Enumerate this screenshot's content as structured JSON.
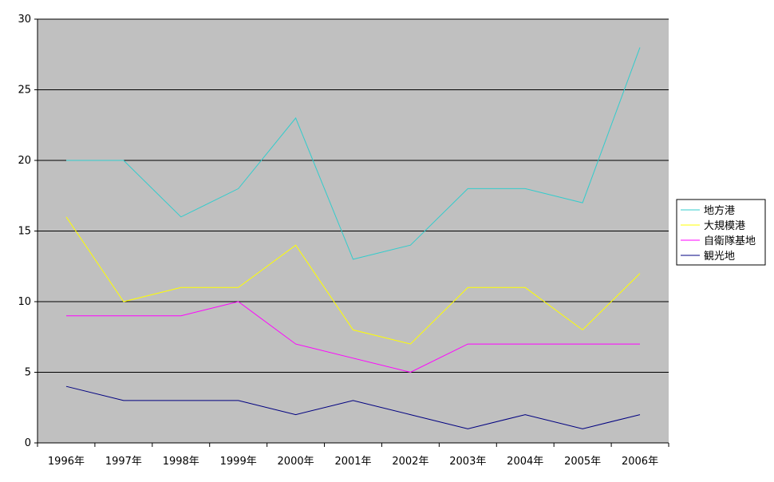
{
  "chart_data": {
    "type": "line",
    "title": "",
    "xlabel": "",
    "ylabel": "",
    "categories": [
      "1996年",
      "1997年",
      "1998年",
      "1999年",
      "2000年",
      "2001年",
      "2002年",
      "2003年",
      "2004年",
      "2005年",
      "2006年"
    ],
    "ylim": [
      0,
      30
    ],
    "yticks": [
      0,
      5,
      10,
      15,
      20,
      25,
      30
    ],
    "grid": "horizontal",
    "plot_background": "#c0c0c0",
    "legend_position": "right",
    "series": [
      {
        "name": "地方港",
        "color": "#33cccc",
        "values": [
          20,
          20,
          16,
          18,
          23,
          13,
          14,
          18,
          18,
          17,
          28
        ]
      },
      {
        "name": "大規模港",
        "color": "#ffff00",
        "values": [
          16,
          10,
          11,
          11,
          14,
          8,
          7,
          11,
          11,
          8,
          12
        ]
      },
      {
        "name": "自衛隊基地",
        "color": "#ff00ff",
        "values": [
          9,
          9,
          9,
          10,
          7,
          6,
          5,
          7,
          7,
          7,
          7
        ]
      },
      {
        "name": "観光地",
        "color": "#000080",
        "values": [
          4,
          3,
          3,
          3,
          2,
          3,
          2,
          1,
          2,
          1,
          2
        ]
      }
    ]
  }
}
